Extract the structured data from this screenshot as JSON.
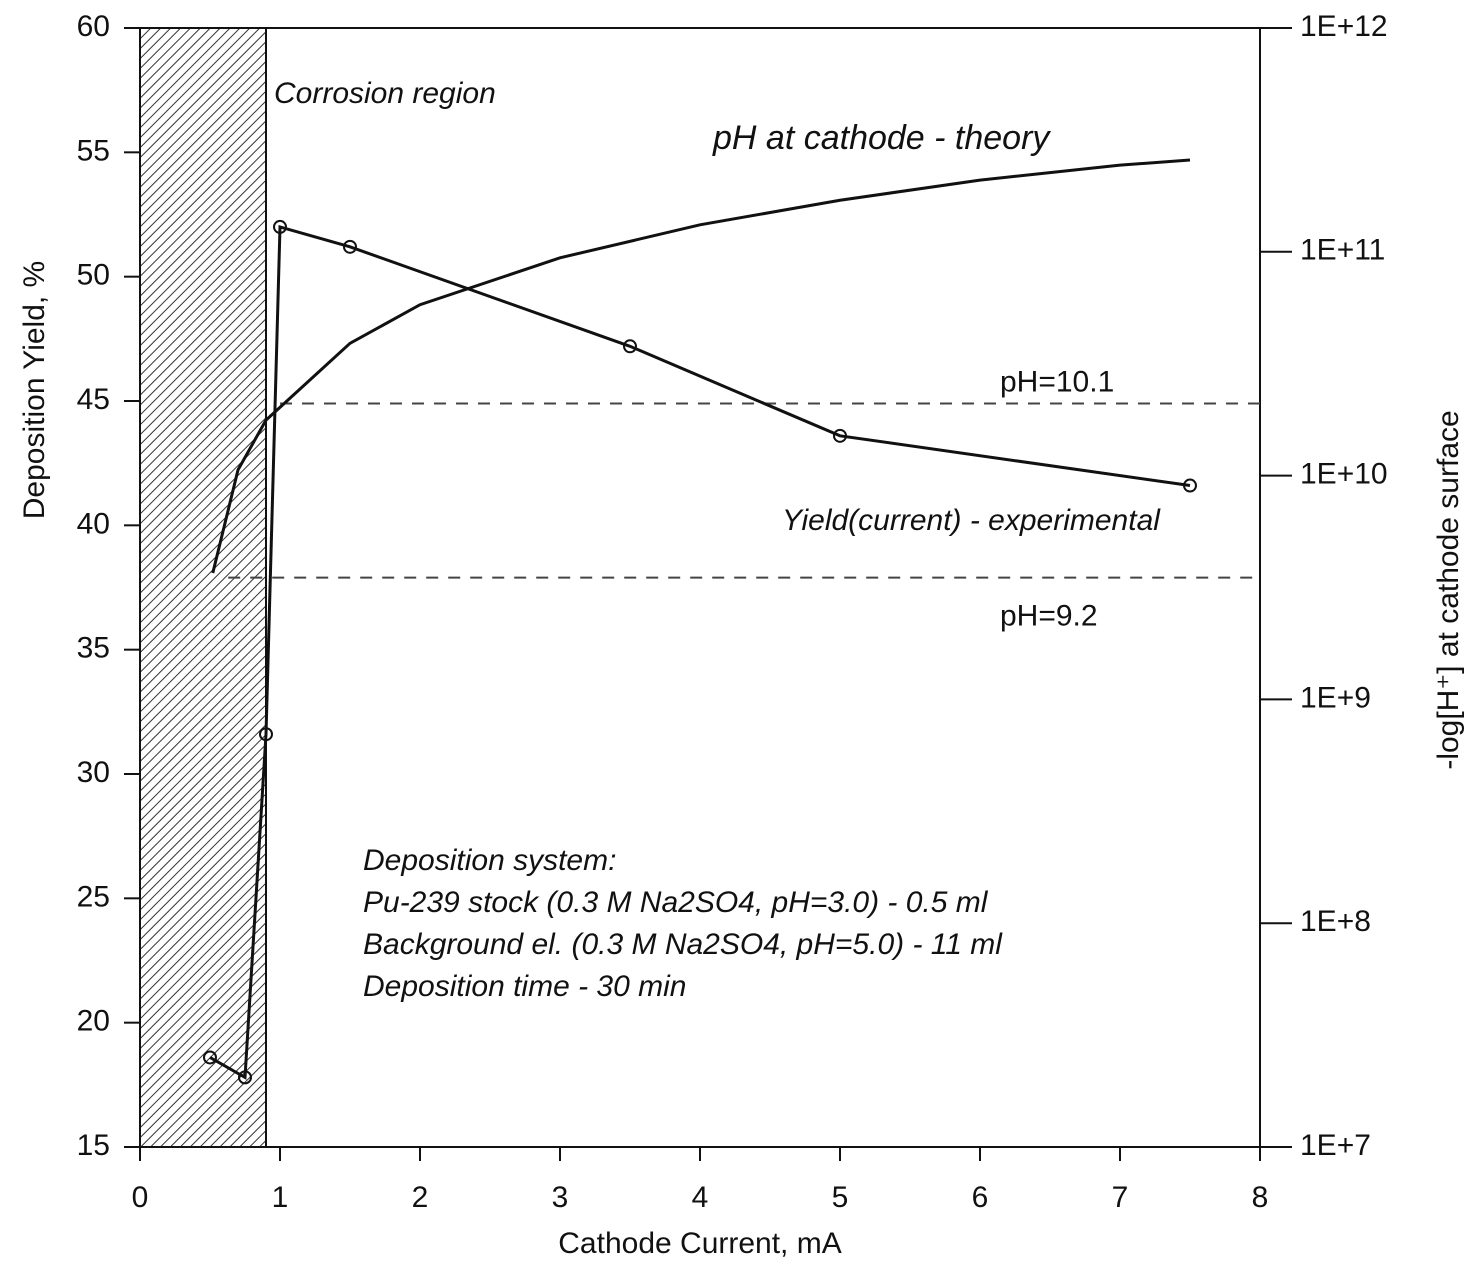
{
  "chart_data": {
    "type": "line",
    "xlabel": "Cathode Current, mA",
    "ylabel": "Deposition Yield, %",
    "y2label": "-log[H⁺] at cathode surface",
    "xlim": [
      0,
      8
    ],
    "xticks": [
      0,
      1,
      2,
      3,
      4,
      5,
      6,
      7,
      8
    ],
    "ylim": [
      15,
      60
    ],
    "yticks": [
      15,
      20,
      25,
      30,
      35,
      40,
      45,
      50,
      55,
      60
    ],
    "y2lim": [
      10000000,
      1000000000000
    ],
    "y2log": true,
    "y2ticks": [
      {
        "value": 10000000,
        "label": "1E+7"
      },
      {
        "value": 100000000,
        "label": "1E+8"
      },
      {
        "value": 1000000000,
        "label": "1E+9"
      },
      {
        "value": 10000000000,
        "label": "1E+10"
      },
      {
        "value": 100000000000,
        "label": "1E+11"
      },
      {
        "value": 1000000000000,
        "label": "1E+12"
      }
    ],
    "series": [
      {
        "name": "Yield(current) - experimental",
        "color": "#111111",
        "markers": true,
        "x": [
          0.5,
          0.75,
          0.9,
          1.0,
          1.5,
          3.5,
          5.0,
          7.5
        ],
        "values": [
          18.6,
          17.8,
          31.6,
          52.0,
          51.2,
          47.2,
          43.6,
          41.6
        ]
      },
      {
        "name": "pH at cathode - theory",
        "color": "#111111",
        "axis": "y2",
        "markers": false,
        "x": [
          0.52,
          0.7,
          0.9,
          1.5,
          2,
          3,
          4,
          5,
          6,
          7,
          7.5
        ],
        "values": [
          3670000000,
          10600000000,
          17700000000,
          39000000000,
          58000000000,
          94000000000,
          132000000000,
          170000000000,
          209000000000,
          244000000000,
          257000000000
        ]
      }
    ],
    "reference_lines": [
      {
        "label": "pH=10.1",
        "y2": 21000000000,
        "x_start": 1.0
      },
      {
        "label": "pH=9.2",
        "y2": 3500000000,
        "x_start": 0.63
      }
    ],
    "shaded_region": {
      "label": "Corrosion region",
      "x": [
        0,
        0.9
      ]
    },
    "annotation": [
      "Deposition system:",
      "Pu-239 stock (0.3 M Na2SO4, pH=3.0) - 0.5 ml",
      "Background el. (0.3 M Na2SO4, pH=5.0) - 11 ml",
      "Deposition time - 30 min"
    ]
  }
}
